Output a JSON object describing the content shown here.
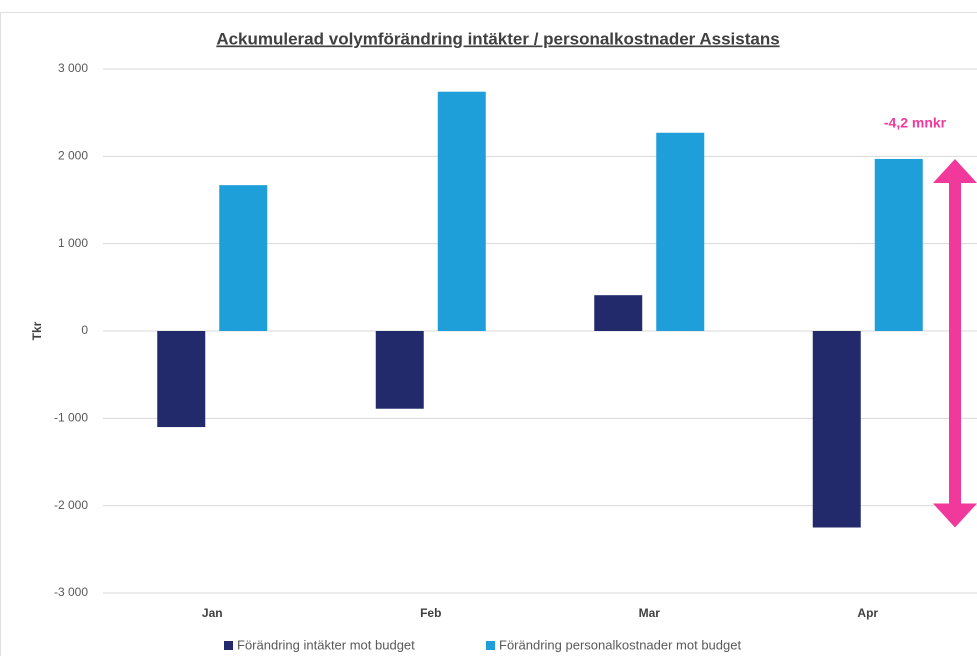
{
  "chart_data": {
    "type": "bar",
    "title": "Ackumulerad volymförändring intäkter / personalkostnader Assistans",
    "y_label": "Tkr",
    "categories": [
      "Jan",
      "Feb",
      "Mar",
      "Apr"
    ],
    "series": [
      {
        "name": "Förändring intäkter mot budget",
        "color": "#232a6c",
        "values": [
          -1100,
          -890,
          410,
          -2250
        ]
      },
      {
        "name": "Förändring personalkostnader mot budget",
        "color": "#1f9fda",
        "values": [
          1670,
          2740,
          2270,
          1970
        ]
      }
    ],
    "ylim": [
      -3000,
      3000
    ],
    "yticks": [
      {
        "value": -3000,
        "label": "-3 000"
      },
      {
        "value": -2000,
        "label": "-2 000"
      },
      {
        "value": -1000,
        "label": "-1 000"
      },
      0,
      {
        "value": 1000,
        "label": "1 000"
      },
      {
        "value": 2000,
        "label": "2 000"
      },
      {
        "value": 3000,
        "label": "3 000"
      }
    ],
    "grid": true,
    "legend": "bottom",
    "annotation": {
      "text": "-4,2 mnkr",
      "color": "#f0399a"
    }
  }
}
